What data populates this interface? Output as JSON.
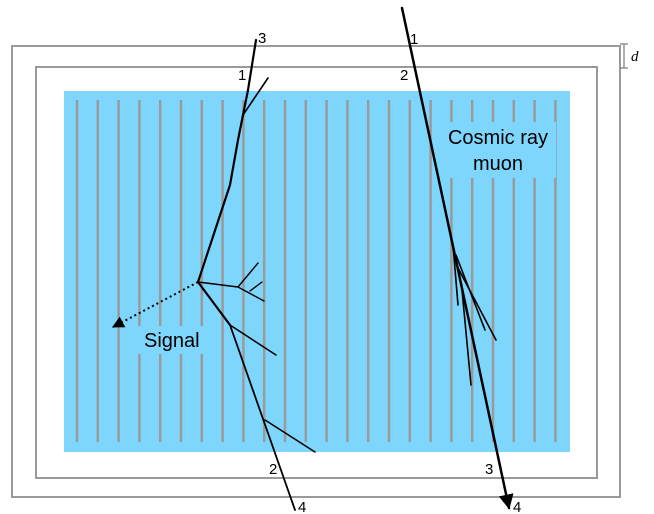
{
  "labels": {
    "signal": "Signal",
    "cosmic_line1": "Cosmic ray",
    "cosmic_line2": "muon",
    "thickness": "d"
  },
  "signal_track_points": {
    "top_outer": "3",
    "top_inner": "1",
    "bottom_inner": "2",
    "bottom_outer": "4"
  },
  "muon_track_points": {
    "top_outer": "1",
    "top_inner": "2",
    "bottom_inner": "3",
    "bottom_outer": "4"
  },
  "colors": {
    "detector_fill": "#7fd6fc",
    "wires": "#9a9a9a",
    "frames": "#9a9a9a",
    "tracks": "#000000"
  }
}
